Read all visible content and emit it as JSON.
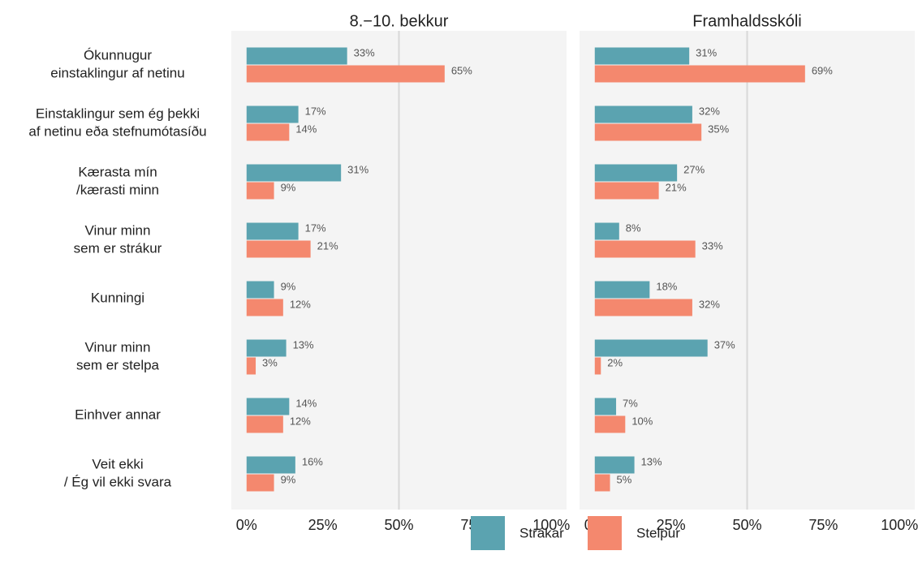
{
  "chart_data": {
    "type": "bar",
    "orientation": "horizontal",
    "categories": [
      [
        "Ókunnugur",
        "einstaklingur af netinu"
      ],
      [
        "Einstaklingur sem ég þekki",
        "af netinu eða stefnumótasíðu"
      ],
      [
        "Kærasta mín",
        "/kærasti minn"
      ],
      [
        "Vinur minn",
        "sem er strákur"
      ],
      [
        "Kunningi"
      ],
      [
        "Vinur minn",
        "sem er stelpa"
      ],
      [
        "Einhver annar"
      ],
      [
        "Veit ekki",
        "/ Ég vil ekki svara"
      ]
    ],
    "series": [
      {
        "name": "Strákar",
        "color": "#5ba3b0"
      },
      {
        "name": "Stelpur",
        "color": "#f4886e"
      }
    ],
    "panels": [
      {
        "title": "8.−10. bekkur",
        "series": [
          {
            "values": [
              33,
              17,
              31,
              17,
              9,
              13,
              14,
              16
            ],
            "value_labels": [
              "33%",
              "17%",
              "31%",
              "17%",
              "9%",
              "13%",
              "14%",
              "16%"
            ]
          },
          {
            "values": [
              65,
              14,
              9,
              21,
              12,
              3,
              12,
              9
            ],
            "value_labels": [
              "65%",
              "14%",
              "9%",
              "21%",
              "12%",
              "3%",
              "12%",
              "9%"
            ]
          }
        ]
      },
      {
        "title": "Framhaldsskóli",
        "series": [
          {
            "values": [
              31,
              32,
              27,
              8,
              18,
              37,
              7,
              13
            ],
            "value_labels": [
              "31%",
              "32%",
              "27%",
              "8%",
              "18%",
              "37%",
              "7%",
              "13%"
            ]
          },
          {
            "values": [
              69,
              35,
              21,
              33,
              32,
              2,
              10,
              5
            ],
            "value_labels": [
              "69%",
              "35%",
              "21%",
              "33%",
              "32%",
              "2%",
              "10%",
              "5%"
            ]
          }
        ]
      }
    ],
    "xlim": [
      -5,
      105
    ],
    "xticks": [
      {
        "value": 0,
        "label": "0%"
      },
      {
        "value": 25,
        "label": "25%"
      },
      {
        "value": 50,
        "label": "50%"
      },
      {
        "value": 75,
        "label": "75%"
      },
      {
        "value": 100,
        "label": "100%"
      }
    ],
    "xgrid": [
      50
    ],
    "legend": "bottom"
  }
}
